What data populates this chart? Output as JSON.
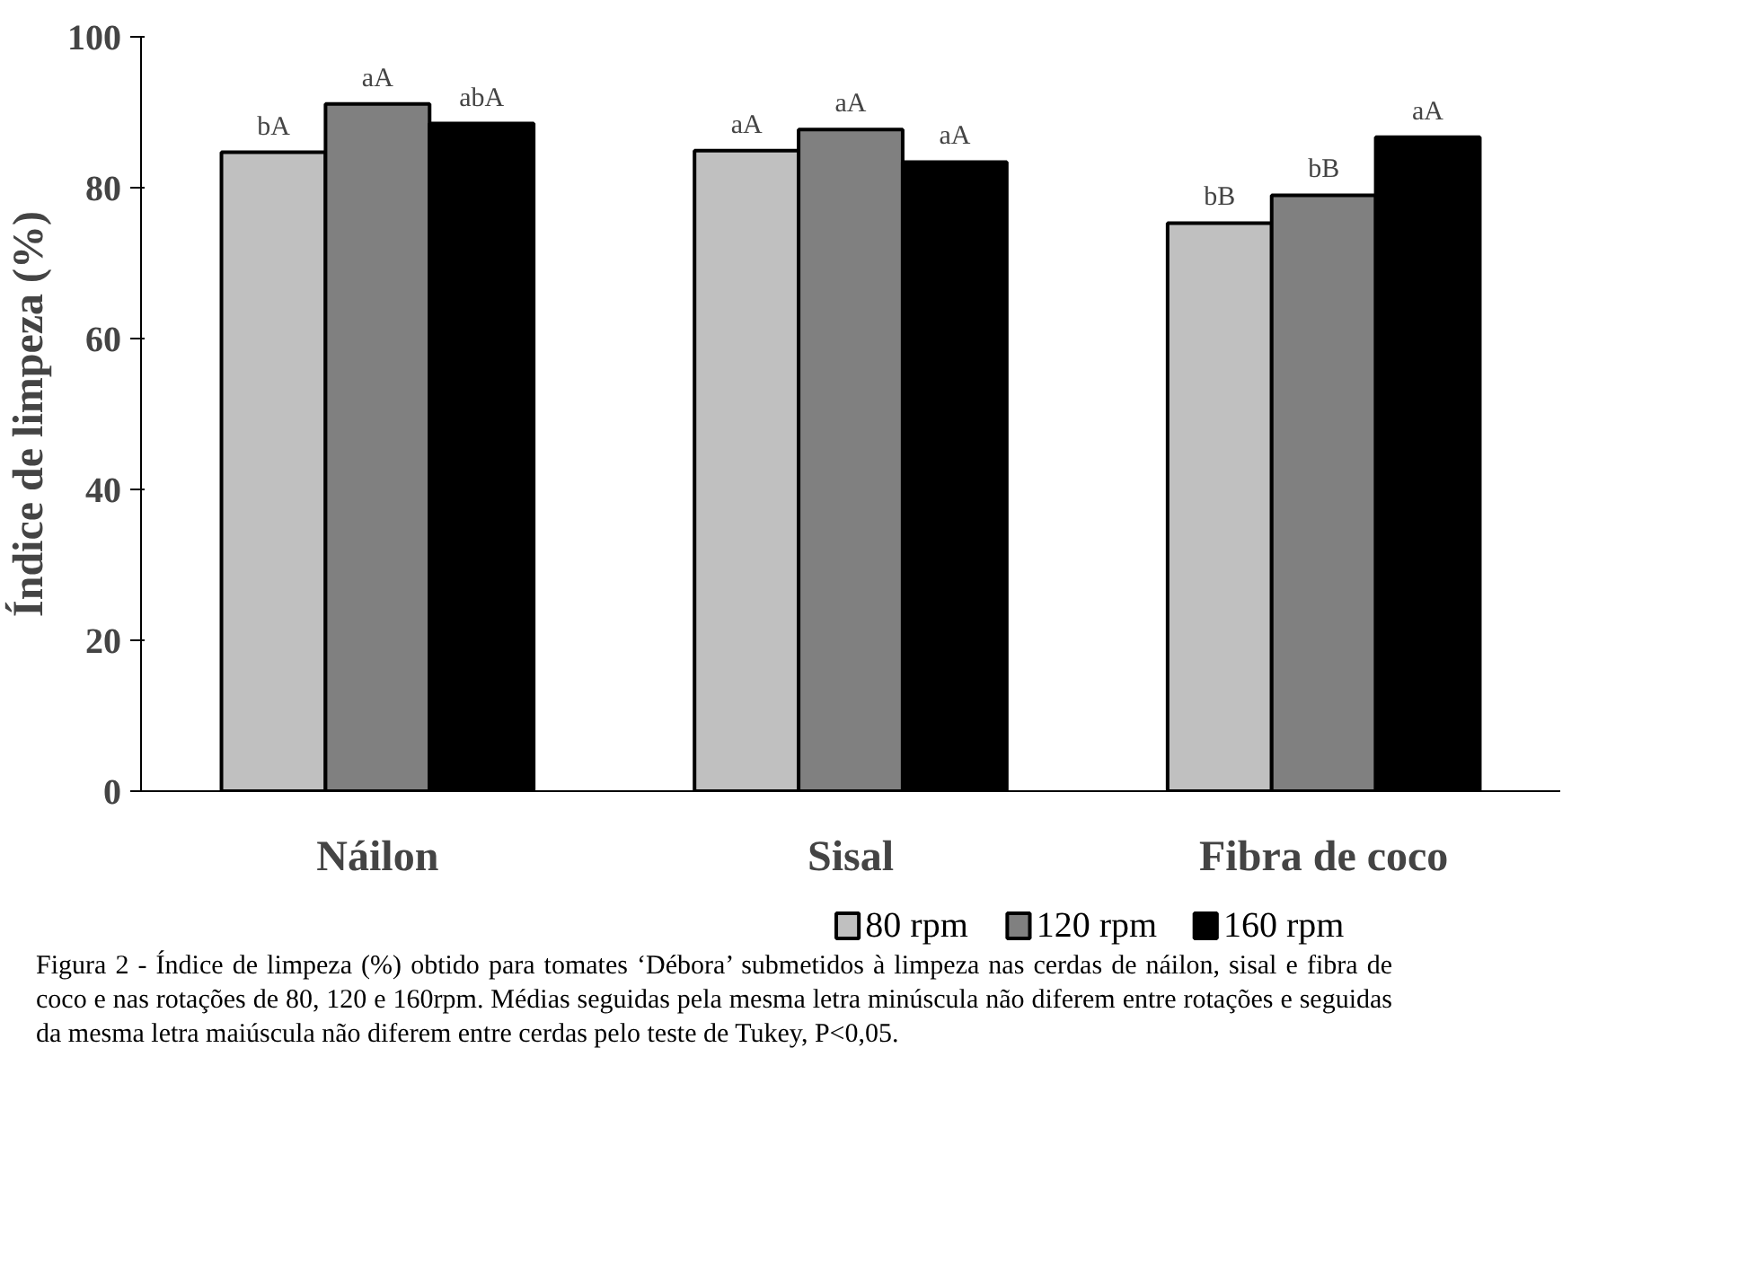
{
  "chart_data": {
    "type": "bar",
    "ylabel": "Índice de limpeza (%)",
    "categories": [
      "Náilon",
      "Sisal",
      "Fibra de coco"
    ],
    "series": [
      {
        "name": "80 rpm",
        "color": "#c0c0c0",
        "values": [
          84.7,
          84.9,
          75.3
        ],
        "value_labels": [
          "bA",
          "aA",
          "bB"
        ]
      },
      {
        "name": "120 rpm",
        "color": "#808080",
        "values": [
          91.1,
          87.7,
          79.0
        ],
        "value_labels": [
          "aA",
          "aA",
          "bB"
        ]
      },
      {
        "name": "160 rpm",
        "color": "#000000",
        "values": [
          88.5,
          83.4,
          86.7
        ],
        "value_labels": [
          "abA",
          "aA",
          "aA"
        ]
      }
    ],
    "ylim": [
      0,
      100
    ],
    "yticks": [
      0,
      20,
      40,
      60,
      80,
      100
    ],
    "grid": false,
    "legend": "bottom",
    "annotations": [
      "Figura 2 - Índice de limpeza (%) obtido para tomates ‘Débora’ submetidos à limpeza nas cerdas de náilon, sisal e fibra de coco e nas rotações de 80, 120 e 160rpm. Médias seguidas pela mesma letra minúscula não diferem entre rotações e seguidas da mesma letra maiúscula não diferem entre cerdas pelo teste de Tukey, P<0,05."
    ]
  }
}
